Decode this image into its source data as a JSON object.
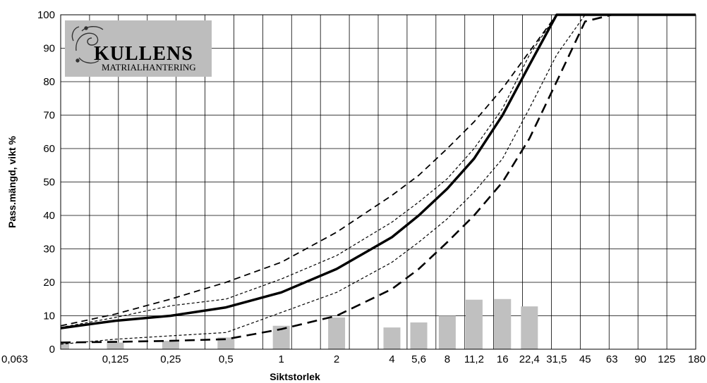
{
  "chart_data": {
    "type": "line",
    "title": "",
    "xlabel": "Siktstorlek",
    "ylabel": "Pass.mängd, vikt %",
    "x_scale": "log",
    "x_ticks": [
      "0,063",
      "0,125",
      "0,25",
      "0,5",
      "1",
      "2",
      "4",
      "5,6",
      "8",
      "11,2",
      "16",
      "22,4",
      "31,5",
      "45",
      "63",
      "90",
      "125",
      "180"
    ],
    "ylim": [
      0,
      100
    ],
    "y_ticks": [
      0,
      10,
      20,
      30,
      40,
      50,
      60,
      70,
      80,
      90,
      100
    ],
    "grid": true,
    "legend": "none",
    "series": [
      {
        "style": "thick-solid",
        "color": "#000000",
        "points": [
          [
            0.063,
            6.3
          ],
          [
            0.125,
            8.5
          ],
          [
            0.25,
            10
          ],
          [
            0.5,
            12.5
          ],
          [
            1,
            17
          ],
          [
            2,
            24
          ],
          [
            4,
            33.5
          ],
          [
            5.6,
            40
          ],
          [
            8,
            48
          ],
          [
            11.2,
            57
          ],
          [
            16,
            70
          ],
          [
            22.4,
            85
          ],
          [
            31.5,
            100
          ],
          [
            180,
            100
          ]
        ]
      },
      {
        "style": "upper-dash",
        "color": "#000000",
        "points": [
          [
            0.063,
            7
          ],
          [
            0.125,
            10.5
          ],
          [
            0.25,
            15
          ],
          [
            0.5,
            20
          ],
          [
            1,
            26
          ],
          [
            2,
            35
          ],
          [
            4,
            46
          ],
          [
            5.6,
            52
          ],
          [
            8,
            60
          ],
          [
            11.2,
            68
          ],
          [
            16,
            78
          ],
          [
            22.4,
            89
          ],
          [
            31.5,
            100
          ],
          [
            180,
            100
          ]
        ]
      },
      {
        "style": "lower-dash",
        "color": "#000000",
        "points": [
          [
            0.063,
            2
          ],
          [
            0.125,
            2.2
          ],
          [
            0.25,
            2.5
          ],
          [
            0.5,
            3
          ],
          [
            1,
            6
          ],
          [
            2,
            10
          ],
          [
            4,
            18
          ],
          [
            5.6,
            24
          ],
          [
            8,
            32
          ],
          [
            11.2,
            40
          ],
          [
            16,
            50
          ],
          [
            22.4,
            63
          ],
          [
            31.5,
            80
          ],
          [
            45,
            98
          ],
          [
            63,
            100
          ],
          [
            180,
            100
          ]
        ]
      },
      {
        "style": "inner-upper-dot",
        "color": "#000000",
        "points": [
          [
            0.063,
            6.5
          ],
          [
            0.125,
            9.5
          ],
          [
            0.25,
            13
          ],
          [
            0.5,
            15
          ],
          [
            1,
            21
          ],
          [
            2,
            28
          ],
          [
            4,
            38
          ],
          [
            5.6,
            44
          ],
          [
            8,
            51
          ],
          [
            11.2,
            60
          ],
          [
            16,
            72
          ],
          [
            22.4,
            88
          ],
          [
            31.5,
            100
          ],
          [
            180,
            100
          ]
        ]
      },
      {
        "style": "inner-lower-dot",
        "color": "#000000",
        "points": [
          [
            0.063,
            1.5
          ],
          [
            0.125,
            3
          ],
          [
            0.25,
            4
          ],
          [
            0.5,
            5
          ],
          [
            1,
            11
          ],
          [
            2,
            17
          ],
          [
            4,
            26
          ],
          [
            5.6,
            32
          ],
          [
            8,
            39
          ],
          [
            11.2,
            47
          ],
          [
            16,
            57
          ],
          [
            22.4,
            72
          ],
          [
            31.5,
            88
          ],
          [
            45,
            100
          ],
          [
            180,
            100
          ]
        ]
      }
    ],
    "bars": {
      "color": "#c0c0c0",
      "points": [
        [
          0.063,
          2
        ],
        [
          0.125,
          2
        ],
        [
          0.25,
          2.5
        ],
        [
          0.5,
          3.5
        ],
        [
          1,
          7
        ],
        [
          2,
          9.5
        ],
        [
          4,
          6.5
        ],
        [
          5.6,
          8
        ],
        [
          8,
          10
        ],
        [
          11.2,
          14.8
        ],
        [
          16,
          15
        ],
        [
          22.4,
          12.8
        ]
      ]
    }
  },
  "logo": {
    "line1": "KULLENS",
    "line2": "MATRIALHANTERING",
    "bg": "#bdbdbd"
  }
}
